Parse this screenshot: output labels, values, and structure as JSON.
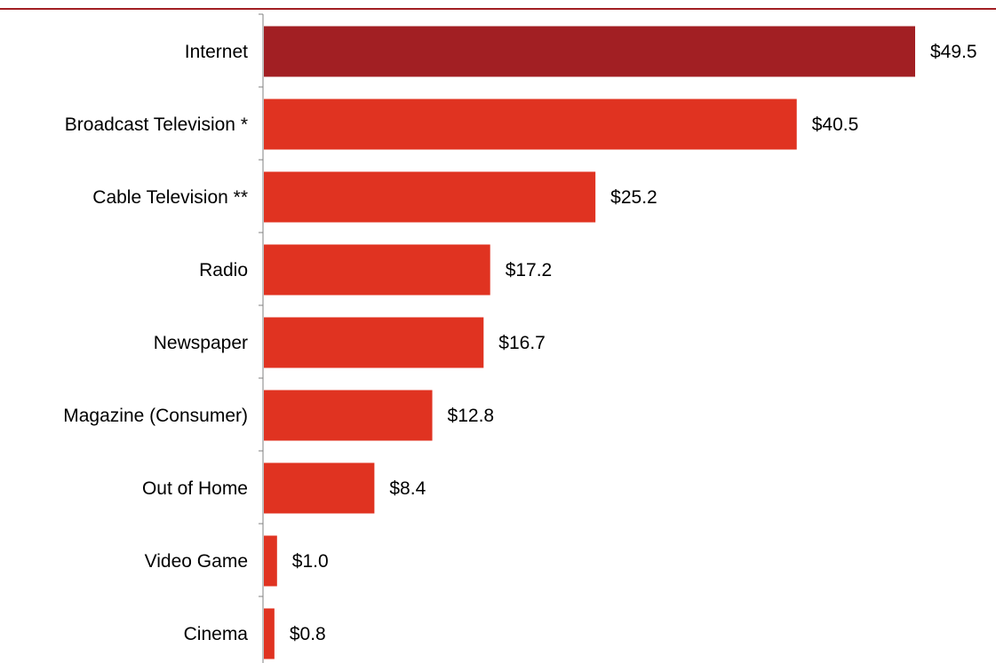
{
  "chart_data": {
    "type": "bar",
    "orientation": "horizontal",
    "title": "",
    "xlabel": "",
    "ylabel": "",
    "categories": [
      "Internet",
      "Broadcast Television *",
      "Cable Television **",
      "Radio",
      "Newspaper",
      "Magazine (Consumer)",
      "Out of Home",
      "Video Game",
      "Cinema"
    ],
    "values": [
      49.5,
      40.5,
      25.2,
      17.2,
      16.7,
      12.8,
      8.4,
      1.0,
      0.8
    ],
    "data_labels": [
      "$49.5",
      "$40.5",
      "$25.2",
      "$17.2",
      "$16.7",
      "$12.8",
      "$8.4",
      "$1.0",
      "$0.8"
    ],
    "xlim": [
      0,
      49.5
    ],
    "grid": false,
    "legend": "none",
    "colors": {
      "highlight": "#A21F23",
      "bar": "#E03321",
      "axis": "#808080",
      "top_rule": "#A21F23",
      "text": "#000000"
    }
  }
}
